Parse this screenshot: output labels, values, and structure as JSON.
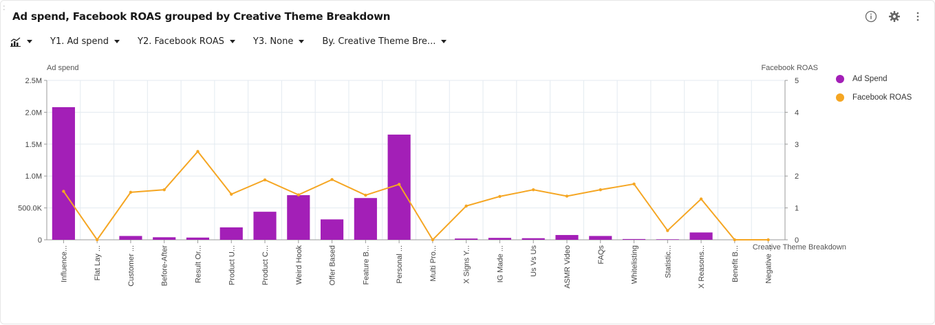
{
  "title": "Ad spend, Facebook ROAS grouped by Creative Theme Breakdown",
  "toolbar": {
    "y1": "Y1. Ad spend",
    "y2": "Y2. Facebook ROAS",
    "y3": "Y3. None",
    "by": "By. Creative Theme Bre..."
  },
  "icons": {
    "chart_type": "chart-type-icon",
    "info": "info-icon",
    "settings": "gear-icon",
    "more": "more-vertical-icon"
  },
  "colors": {
    "bar": "#a31fb7",
    "line": "#f5a623",
    "grid": "#e3eaf0",
    "axis": "#999999"
  },
  "chart_data": {
    "type": "bar",
    "xlabel": "Creative Theme Breakdown",
    "ylabel": "Ad spend",
    "y2label": "Facebook ROAS",
    "ylim": [
      0,
      2500000
    ],
    "y2lim": [
      0,
      5
    ],
    "yticks": [
      "0",
      "500.0K",
      "1.0M",
      "1.5M",
      "2.0M",
      "2.5M"
    ],
    "y2ticks": [
      "0",
      "1",
      "2",
      "3",
      "4",
      "5"
    ],
    "categories": [
      "Influence...",
      "Flat Lay ...",
      "Customer ...",
      "Before-After",
      "Result Or...",
      "Product U...",
      "Product C...",
      "Weird Hook",
      "Offer Based",
      "Feature B...",
      "Personal ...",
      "Multi Pro...",
      "X Signs Y...",
      "IG Made ...",
      "Us Vs Us",
      "ASMR Video",
      "FAQs",
      "Whitelisting",
      "Statistic...",
      "X Reasons...",
      "Benefit B...",
      "Negative ..."
    ],
    "series": [
      {
        "name": "Ad Spend",
        "axis": "left",
        "kind": "bar",
        "values": [
          2080000,
          0,
          60000,
          40000,
          35000,
          195000,
          440000,
          700000,
          320000,
          655000,
          1650000,
          0,
          20000,
          30000,
          25000,
          75000,
          60000,
          12000,
          8000,
          115000,
          0,
          0
        ]
      },
      {
        "name": "Facebook ROAS",
        "axis": "right",
        "kind": "line",
        "values": [
          1.52,
          0,
          1.49,
          1.57,
          2.77,
          1.43,
          1.88,
          1.41,
          1.89,
          1.4,
          1.74,
          0,
          1.06,
          1.36,
          1.57,
          1.37,
          1.57,
          1.75,
          0.29,
          1.28,
          0,
          0
        ]
      }
    ],
    "legend": [
      "Ad Spend",
      "Facebook ROAS"
    ],
    "legend_position": "right",
    "grid": true
  }
}
